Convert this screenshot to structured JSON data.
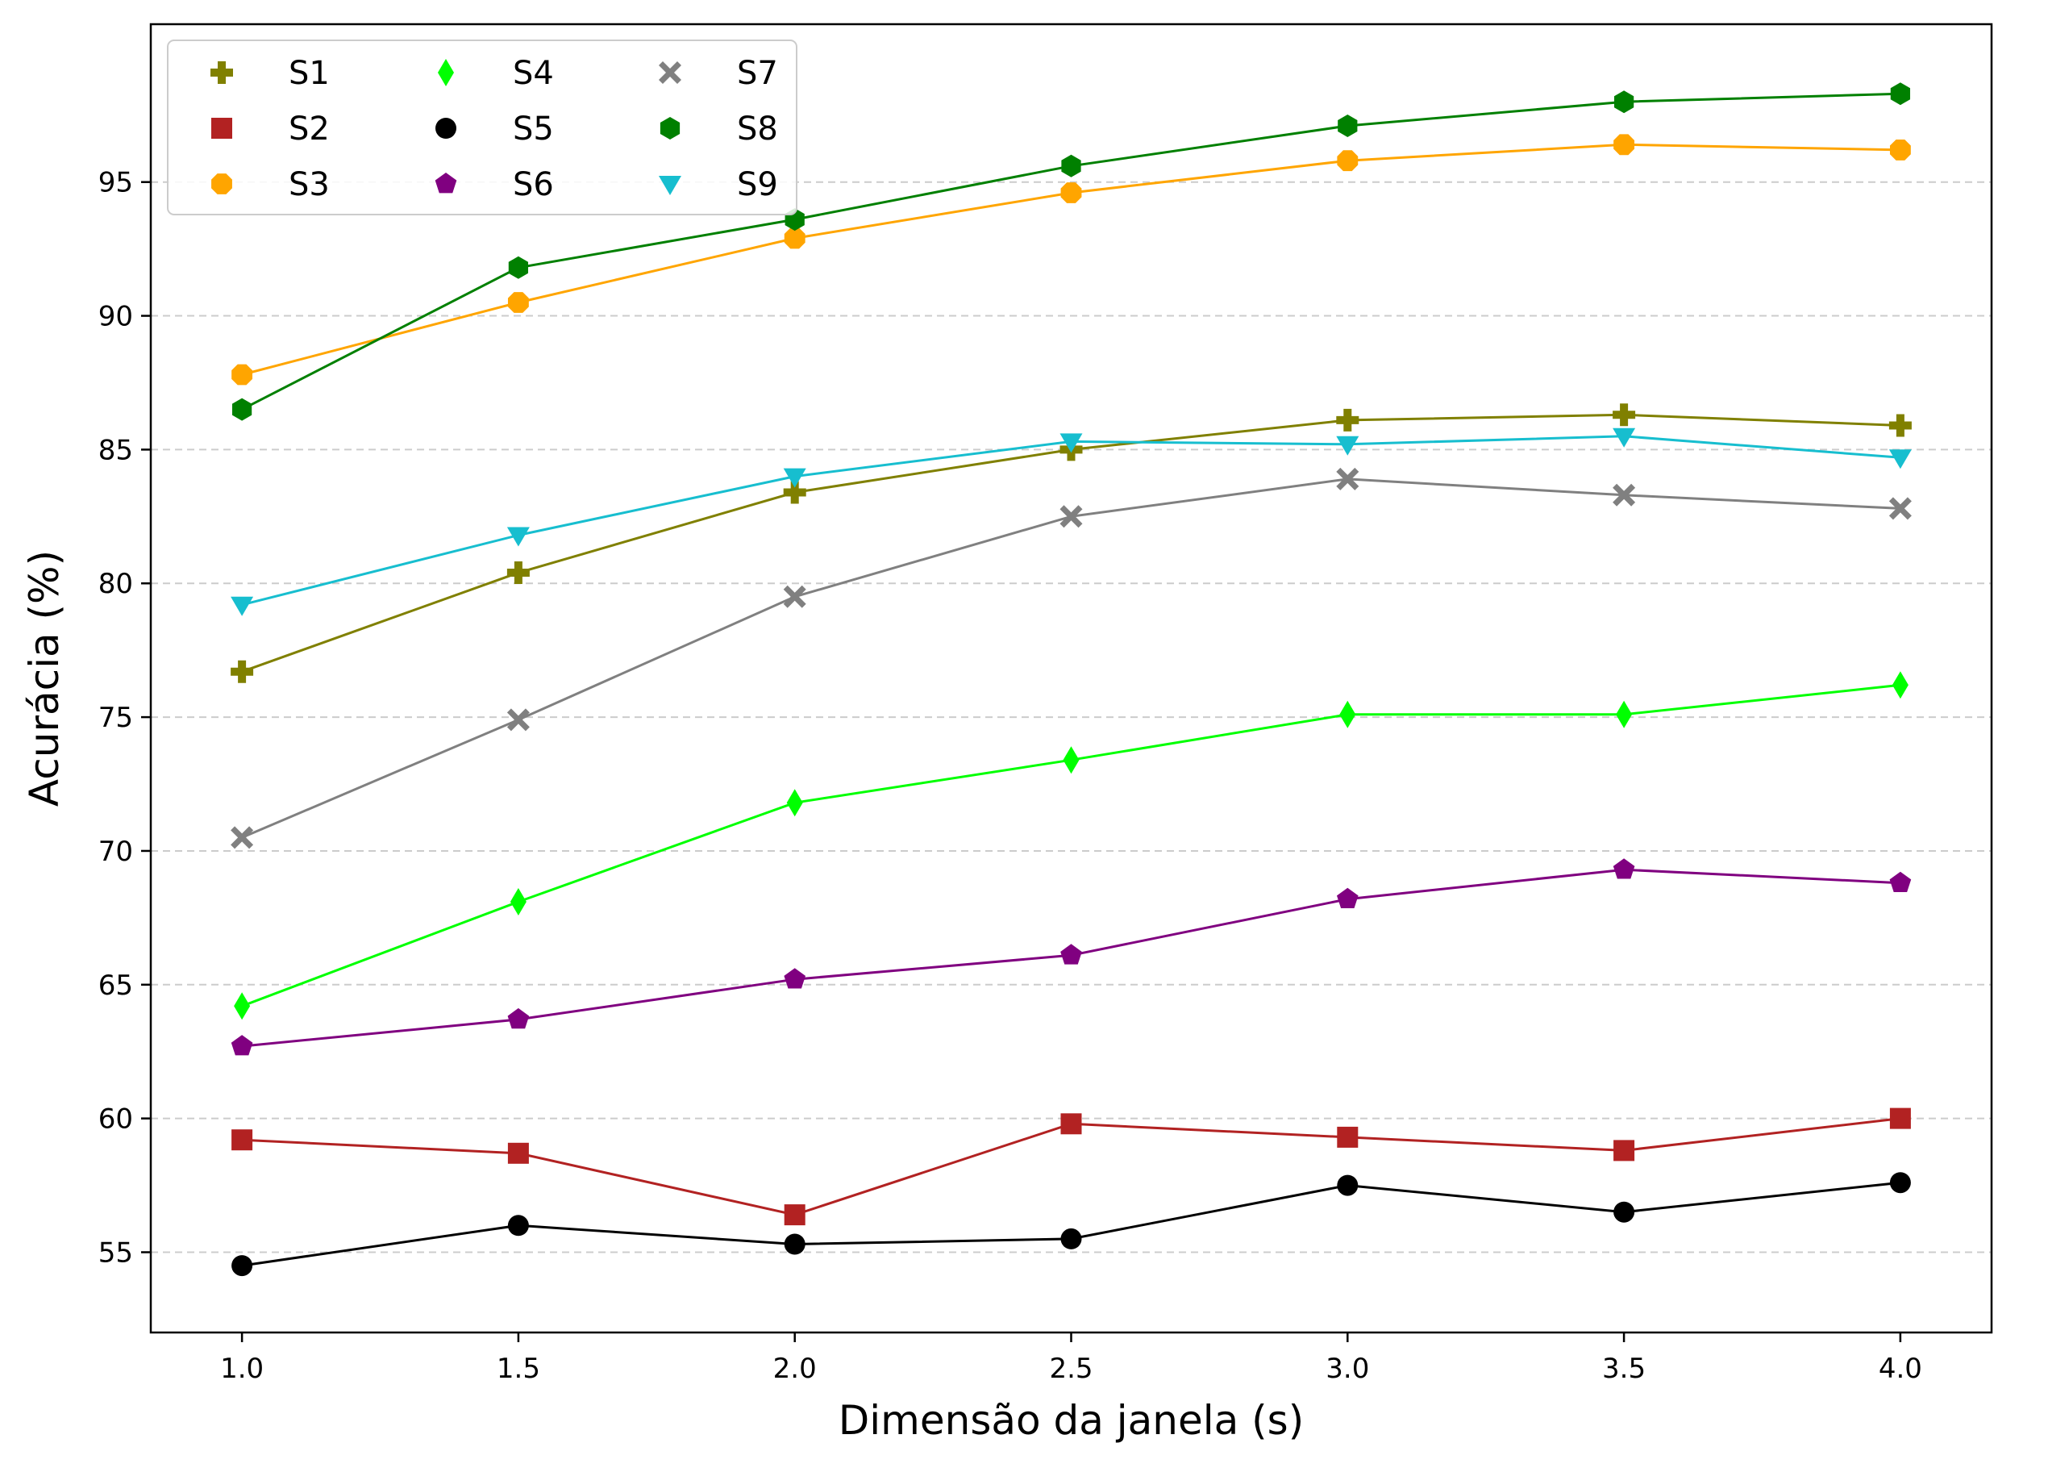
{
  "chart_data": {
    "type": "line",
    "title": "",
    "xlabel": "Dimensão da janela (s)",
    "ylabel": "Acurácia (%)",
    "x": [
      1.0,
      1.5,
      2.0,
      2.5,
      3.0,
      3.5,
      4.0
    ],
    "x_tick_labels": [
      "1.0",
      "1.5",
      "2.0",
      "2.5",
      "3.0",
      "3.5",
      "4.0"
    ],
    "y_ticks": [
      55,
      60,
      65,
      70,
      75,
      80,
      85,
      90,
      95
    ],
    "xlim": [
      0.835,
      4.165
    ],
    "ylim": [
      52.0,
      100.9
    ],
    "grid": "horizontal dashed",
    "legend_position": "top-left",
    "legend_columns": 3,
    "series": [
      {
        "name": "S1",
        "color": "#808000",
        "marker": "plus",
        "values": [
          76.7,
          80.4,
          83.4,
          85.0,
          86.1,
          86.3,
          85.9
        ]
      },
      {
        "name": "S2",
        "color": "#b22222",
        "marker": "square",
        "values": [
          59.2,
          58.7,
          56.4,
          59.8,
          59.3,
          58.8,
          60.0
        ]
      },
      {
        "name": "S3",
        "color": "#ffa500",
        "marker": "octagon",
        "values": [
          87.8,
          90.5,
          92.9,
          94.6,
          95.8,
          96.4,
          96.2
        ]
      },
      {
        "name": "S4",
        "color": "#00ff00",
        "marker": "thin-diamond",
        "values": [
          64.2,
          68.1,
          71.8,
          73.4,
          75.1,
          75.1,
          76.2
        ]
      },
      {
        "name": "S5",
        "color": "#000000",
        "marker": "circle",
        "values": [
          54.5,
          56.0,
          55.3,
          55.5,
          57.5,
          56.5,
          57.6
        ]
      },
      {
        "name": "S6",
        "color": "#800080",
        "marker": "pentagon",
        "values": [
          62.7,
          63.7,
          65.2,
          66.1,
          68.2,
          69.3,
          68.8
        ]
      },
      {
        "name": "S7",
        "color": "#808080",
        "marker": "x-filled",
        "values": [
          70.5,
          74.9,
          79.5,
          82.5,
          83.9,
          83.3,
          82.8
        ]
      },
      {
        "name": "S8",
        "color": "#008000",
        "marker": "hexagon",
        "values": [
          86.5,
          91.8,
          93.6,
          95.6,
          97.1,
          98.0,
          98.3
        ]
      },
      {
        "name": "S9",
        "color": "#17becf",
        "marker": "triangle-down",
        "values": [
          79.2,
          81.8,
          84.0,
          85.3,
          85.2,
          85.5,
          84.7
        ]
      }
    ]
  }
}
